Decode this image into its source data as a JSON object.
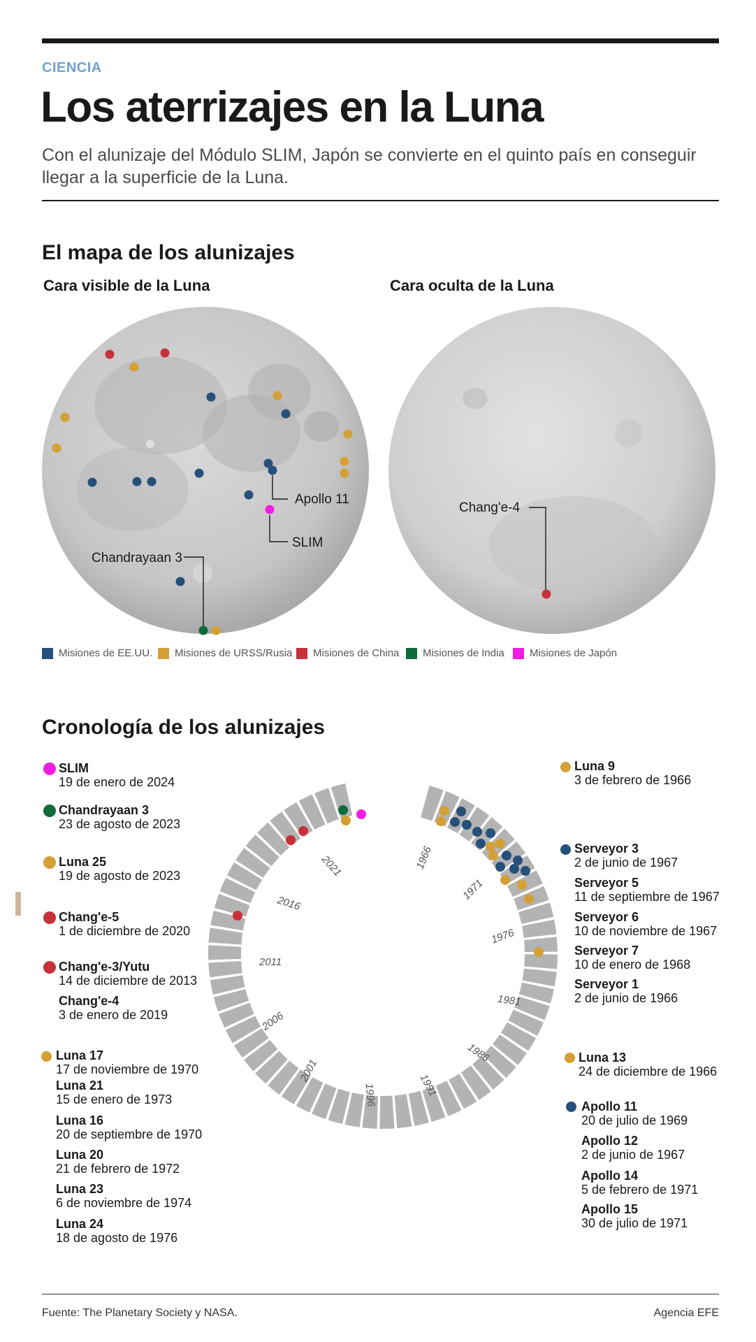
{
  "header": {
    "category": "CIENCIA",
    "title": "Los aterrizajes en la Luna",
    "subtitle": "Con el alunizaje del Módulo SLIM, Japón se convierte en el quinto país en conseguir llegar a la superficie de la Luna."
  },
  "colors": {
    "usa": "#25507a",
    "urss": "#d4a035",
    "china": "#c8303a",
    "india": "#0f6b3a",
    "japan": "#f21de3",
    "moon": "#c9c9c9",
    "ring_segment": "#b3b3b3"
  },
  "map": {
    "section_title": "El mapa de los alunizajes",
    "near_side_title": "Cara visible de la Luna",
    "far_side_title": "Cara oculta de la Luna",
    "labels": {
      "apollo11": "Apollo 11",
      "slim": "SLIM",
      "chandrayaan3": "Chandrayaan 3",
      "change4": "Chang'e-4"
    }
  },
  "legend": [
    {
      "label": "Misiones de EE.UU.",
      "color": "#25507a"
    },
    {
      "label": "Misiones de URSS/Rusia",
      "color": "#d4a035"
    },
    {
      "label": "Misiones de China",
      "color": "#c8303a"
    },
    {
      "label": "Misiones de India",
      "color": "#0f6b3a"
    },
    {
      "label": "Misiones de Japón",
      "color": "#f21de3"
    }
  ],
  "timeline": {
    "section_title": "Cronología de los alunizajes",
    "year_labels": [
      "1966",
      "1971",
      "1976",
      "1981",
      "1986",
      "1991",
      "1996",
      "2001",
      "2006",
      "2011",
      "2016",
      "2021"
    ],
    "left": {
      "slim": {
        "name": "SLIM",
        "date": "19 de enero de 2024"
      },
      "chandrayaan3": {
        "name": "Chandrayaan 3",
        "date": "23 de agosto de 2023"
      },
      "luna25": {
        "name": "Luna 25",
        "date": "19 de agosto de 2023"
      },
      "change5": {
        "name": "Chang'e-5",
        "date": "1 de diciembre de 2020"
      },
      "change3": {
        "name": "Chang'e-3/Yutu",
        "date": "14 de diciembre de 2013"
      },
      "change4": {
        "name": "Chang'e-4",
        "date": "3 de enero de 2019"
      },
      "luna17": {
        "name": "Luna 17",
        "date": "17 de noviembre de 1970"
      },
      "luna21": {
        "name": "Luna 21",
        "date": "15 de enero de 1973"
      },
      "luna16": {
        "name": "Luna 16",
        "date": "20 de septiembre de 1970"
      },
      "luna20": {
        "name": "Luna 20",
        "date": "21 de febrero de 1972"
      },
      "luna23": {
        "name": "Luna 23",
        "date": "6 de noviembre de 1974"
      },
      "luna24": {
        "name": "Luna 24",
        "date": "18 de agosto de 1976"
      }
    },
    "right": {
      "luna9": {
        "name": "Luna 9",
        "date": "3 de febrero de 1966"
      },
      "surveyor3": {
        "name": "Serveyor 3",
        "date": "2 de junio de 1967"
      },
      "surveyor5": {
        "name": "Serveyor 5",
        "date": "11 de septiembre de 1967"
      },
      "surveyor6": {
        "name": "Serveyor 6",
        "date": "10 de noviembre de 1967"
      },
      "surveyor7": {
        "name": "Serveyor 7",
        "date": "10 de enero de 1968"
      },
      "surveyor1": {
        "name": "Serveyor 1",
        "date": "2 de junio de 1966"
      },
      "luna13": {
        "name": "Luna 13",
        "date": "24 de diciembre de 1966"
      },
      "apollo11": {
        "name": "Apollo 11",
        "date": "20 de julio de 1969"
      },
      "apollo12": {
        "name": "Apollo 12",
        "date": "2 de junio de 1967"
      },
      "apollo14": {
        "name": "Apollo 14",
        "date": "5 de febrero de 1971"
      },
      "apollo15": {
        "name": "Apollo 15",
        "date": "30 de julio de 1971"
      }
    }
  },
  "footer": {
    "source": "Fuente: The Planetary Society y NASA.",
    "agency": "Agencia EFE"
  }
}
